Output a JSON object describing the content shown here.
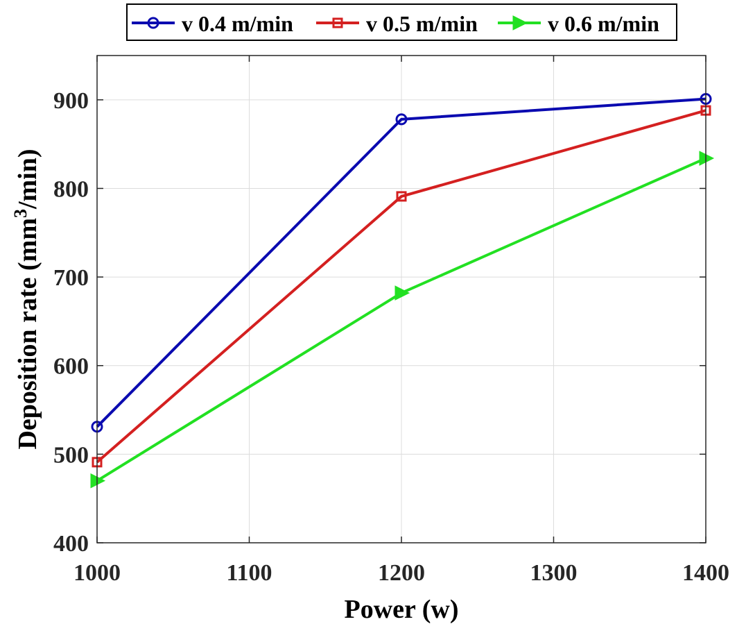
{
  "chart_data": {
    "type": "line",
    "xlabel": "Power (w)",
    "ylabel_main": "Deposition rate (mm",
    "ylabel_sup": "3",
    "ylabel_tail": "/min)",
    "xlim": [
      1000,
      1400
    ],
    "ylim": [
      400,
      950
    ],
    "x_ticks": [
      "1000",
      "1100",
      "1200",
      "1300",
      "1400"
    ],
    "y_ticks": [
      "400",
      "500",
      "600",
      "700",
      "800",
      "900"
    ],
    "grid": true,
    "legend_position": "top",
    "x": [
      1000,
      1200,
      1400
    ],
    "series": [
      {
        "name": "v 0.4 m/min",
        "values": [
          531,
          878,
          901
        ],
        "color": "#0a0ab0",
        "marker": "circle"
      },
      {
        "name": "v 0.5 m/min",
        "values": [
          491,
          791,
          888
        ],
        "color": "#d42020",
        "marker": "square"
      },
      {
        "name": "v 0.6 m/min",
        "values": [
          470,
          682,
          834
        ],
        "color": "#22e022",
        "marker": "triangle-right"
      }
    ]
  }
}
